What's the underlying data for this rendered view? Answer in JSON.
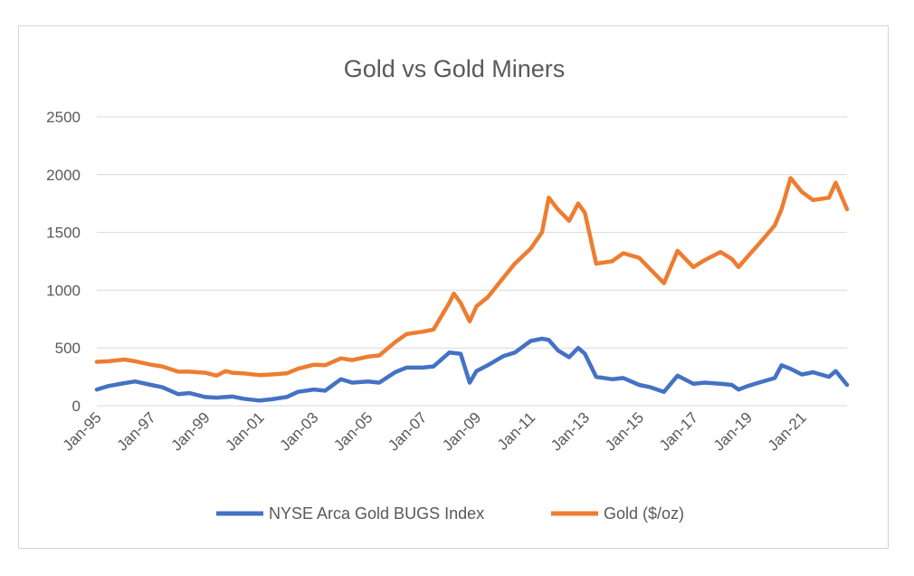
{
  "chart_data": {
    "type": "line",
    "title": "Gold vs Gold Miners",
    "xlabel": "",
    "ylabel": "",
    "ylim": [
      0,
      2500
    ],
    "yticks": [
      0,
      500,
      1000,
      1500,
      2000,
      2500
    ],
    "xlim": [
      "1995-01",
      "2022-09"
    ],
    "xticks": [
      "Jan-95",
      "Jan-97",
      "Jan-99",
      "Jan-01",
      "Jan-03",
      "Jan-05",
      "Jan-07",
      "Jan-09",
      "Jan-11",
      "Jan-13",
      "Jan-15",
      "Jan-17",
      "Jan-19",
      "Jan-21"
    ],
    "grid": true,
    "legend_position": "bottom",
    "series": [
      {
        "name": "NYSE Arca Gold BUGS Index",
        "color": "#4472C4",
        "points": [
          [
            "1995-01",
            140
          ],
          [
            "1995-06",
            170
          ],
          [
            "1996-01",
            195
          ],
          [
            "1996-06",
            210
          ],
          [
            "1997-01",
            180
          ],
          [
            "1997-06",
            160
          ],
          [
            "1998-01",
            100
          ],
          [
            "1998-06",
            110
          ],
          [
            "1999-01",
            75
          ],
          [
            "1999-06",
            70
          ],
          [
            "2000-01",
            80
          ],
          [
            "2000-06",
            60
          ],
          [
            "2001-01",
            45
          ],
          [
            "2001-06",
            55
          ],
          [
            "2002-01",
            75
          ],
          [
            "2002-06",
            120
          ],
          [
            "2003-01",
            140
          ],
          [
            "2003-06",
            130
          ],
          [
            "2004-01",
            230
          ],
          [
            "2004-06",
            200
          ],
          [
            "2005-01",
            210
          ],
          [
            "2005-06",
            200
          ],
          [
            "2006-01",
            290
          ],
          [
            "2006-06",
            330
          ],
          [
            "2007-01",
            330
          ],
          [
            "2007-06",
            340
          ],
          [
            "2008-01",
            460
          ],
          [
            "2008-06",
            450
          ],
          [
            "2008-10",
            200
          ],
          [
            "2009-01",
            300
          ],
          [
            "2009-06",
            350
          ],
          [
            "2010-01",
            430
          ],
          [
            "2010-06",
            460
          ],
          [
            "2011-01",
            560
          ],
          [
            "2011-06",
            580
          ],
          [
            "2011-09",
            570
          ],
          [
            "2012-01",
            480
          ],
          [
            "2012-06",
            420
          ],
          [
            "2012-10",
            500
          ],
          [
            "2013-01",
            450
          ],
          [
            "2013-06",
            250
          ],
          [
            "2014-01",
            230
          ],
          [
            "2014-06",
            240
          ],
          [
            "2015-01",
            180
          ],
          [
            "2015-06",
            160
          ],
          [
            "2015-12",
            120
          ],
          [
            "2016-06",
            260
          ],
          [
            "2017-01",
            190
          ],
          [
            "2017-06",
            200
          ],
          [
            "2018-01",
            190
          ],
          [
            "2018-06",
            180
          ],
          [
            "2018-09",
            140
          ],
          [
            "2019-01",
            170
          ],
          [
            "2019-06",
            200
          ],
          [
            "2020-01",
            240
          ],
          [
            "2020-04",
            350
          ],
          [
            "2020-08",
            320
          ],
          [
            "2021-01",
            270
          ],
          [
            "2021-06",
            290
          ],
          [
            "2022-01",
            250
          ],
          [
            "2022-04",
            300
          ],
          [
            "2022-09",
            180
          ]
        ]
      },
      {
        "name": "Gold ($/oz)",
        "color": "#ED7D31",
        "points": [
          [
            "1995-01",
            380
          ],
          [
            "1995-06",
            385
          ],
          [
            "1996-01",
            400
          ],
          [
            "1996-06",
            385
          ],
          [
            "1997-01",
            355
          ],
          [
            "1997-06",
            340
          ],
          [
            "1998-01",
            295
          ],
          [
            "1998-06",
            295
          ],
          [
            "1999-01",
            285
          ],
          [
            "1999-06",
            260
          ],
          [
            "1999-10",
            300
          ],
          [
            "2000-01",
            285
          ],
          [
            "2000-06",
            280
          ],
          [
            "2001-01",
            265
          ],
          [
            "2001-06",
            270
          ],
          [
            "2002-01",
            280
          ],
          [
            "2002-06",
            320
          ],
          [
            "2003-01",
            355
          ],
          [
            "2003-06",
            350
          ],
          [
            "2004-01",
            410
          ],
          [
            "2004-06",
            395
          ],
          [
            "2005-01",
            425
          ],
          [
            "2005-06",
            435
          ],
          [
            "2006-01",
            550
          ],
          [
            "2006-06",
            620
          ],
          [
            "2007-01",
            640
          ],
          [
            "2007-06",
            660
          ],
          [
            "2008-01",
            890
          ],
          [
            "2008-03",
            970
          ],
          [
            "2008-06",
            890
          ],
          [
            "2008-10",
            730
          ],
          [
            "2009-01",
            860
          ],
          [
            "2009-06",
            940
          ],
          [
            "2010-01",
            1110
          ],
          [
            "2010-06",
            1230
          ],
          [
            "2011-01",
            1360
          ],
          [
            "2011-06",
            1500
          ],
          [
            "2011-09",
            1800
          ],
          [
            "2012-01",
            1700
          ],
          [
            "2012-06",
            1600
          ],
          [
            "2012-10",
            1750
          ],
          [
            "2013-01",
            1670
          ],
          [
            "2013-06",
            1230
          ],
          [
            "2014-01",
            1250
          ],
          [
            "2014-06",
            1320
          ],
          [
            "2015-01",
            1280
          ],
          [
            "2015-06",
            1180
          ],
          [
            "2015-12",
            1060
          ],
          [
            "2016-06",
            1340
          ],
          [
            "2017-01",
            1200
          ],
          [
            "2017-06",
            1260
          ],
          [
            "2018-01",
            1330
          ],
          [
            "2018-06",
            1270
          ],
          [
            "2018-09",
            1200
          ],
          [
            "2019-01",
            1290
          ],
          [
            "2019-06",
            1400
          ],
          [
            "2020-01",
            1560
          ],
          [
            "2020-04",
            1700
          ],
          [
            "2020-08",
            1970
          ],
          [
            "2021-01",
            1850
          ],
          [
            "2021-06",
            1780
          ],
          [
            "2022-01",
            1800
          ],
          [
            "2022-04",
            1930
          ],
          [
            "2022-09",
            1700
          ]
        ]
      }
    ]
  }
}
